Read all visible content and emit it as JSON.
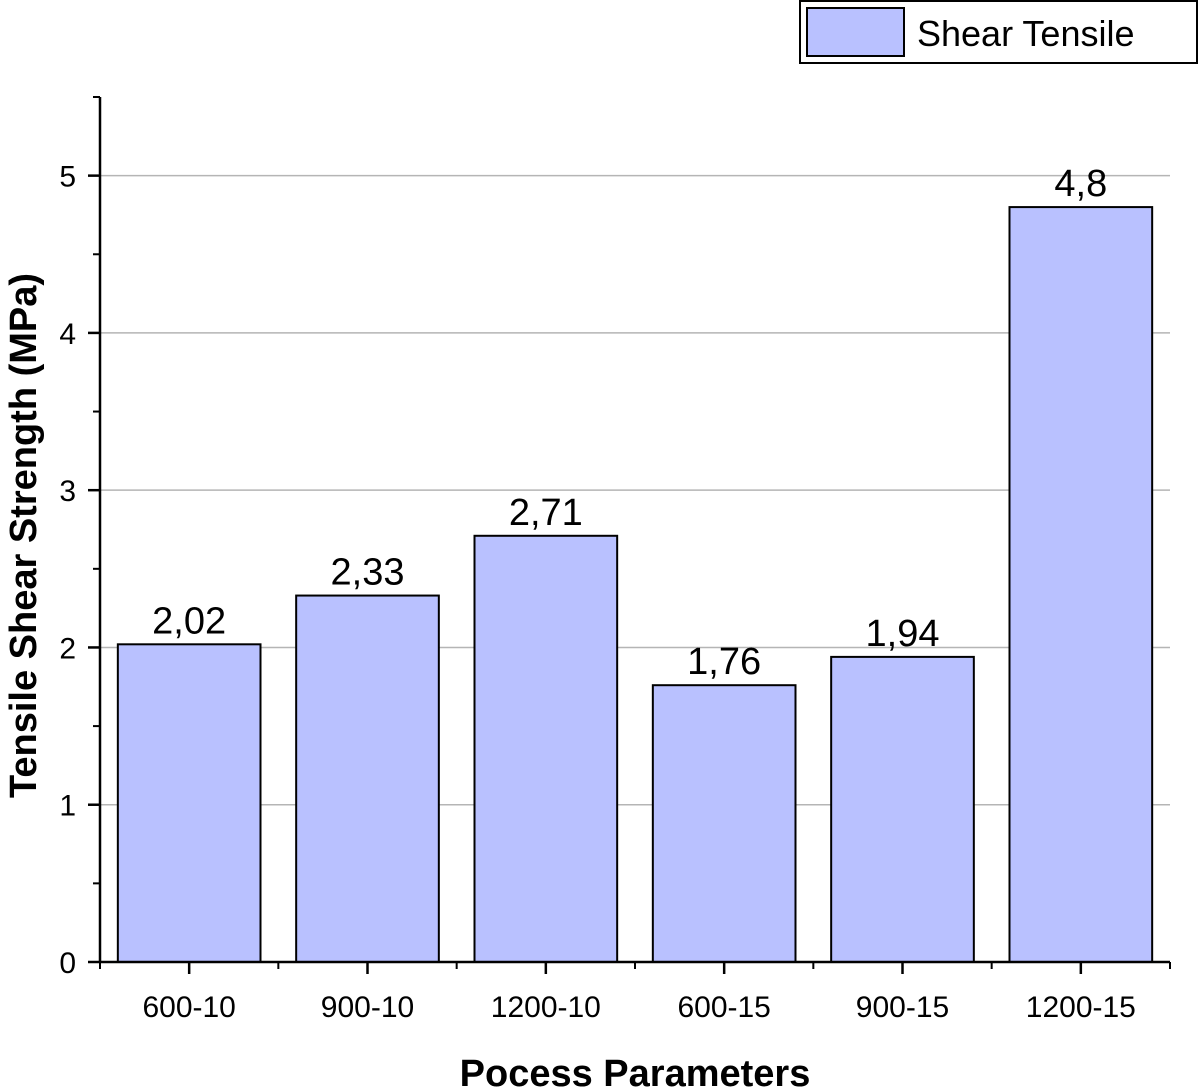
{
  "chart_data": {
    "type": "bar",
    "categories": [
      "600-10",
      "900-10",
      "1200-10",
      "600-15",
      "900-15",
      "1200-15"
    ],
    "series": [
      {
        "name": "Shear Tensile",
        "values": [
          2.02,
          2.33,
          2.71,
          1.76,
          1.94,
          4.8
        ],
        "data_labels": [
          "2,02",
          "2,33",
          "2,71",
          "1,76",
          "1,94",
          "4,8"
        ],
        "color": "#b9c1ff",
        "edge_color": "#000000"
      }
    ],
    "xlabel": "Pocess Parameters",
    "ylabel": "Tensile Shear Strength (MPa)",
    "ylim": [
      0,
      5.5
    ],
    "yticks": [
      0,
      1,
      2,
      3,
      4,
      5
    ],
    "ytick_labels": [
      "0",
      "1",
      "2",
      "3",
      "4",
      "5"
    ],
    "grid": "horizontal",
    "legend": {
      "position": "top-right",
      "entries": [
        "Shear Tensile"
      ]
    }
  }
}
